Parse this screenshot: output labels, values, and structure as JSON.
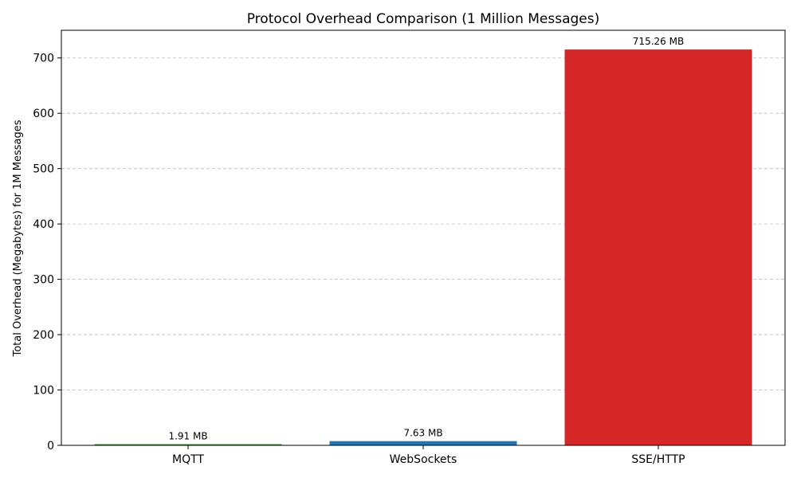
{
  "chart_data": {
    "type": "bar",
    "title": "Protocol Overhead Comparison (1 Million Messages)",
    "xlabel": "",
    "ylabel": "Total Overhead (Megabytes) for 1M Messages",
    "categories": [
      "MQTT",
      "WebSockets",
      "SSE/HTTP"
    ],
    "values": [
      1.91,
      7.63,
      715.26
    ],
    "data_labels": [
      "1.91 MB",
      "7.63 MB",
      "715.26 MB"
    ],
    "colors": [
      "#2ca02c",
      "#1f77b4",
      "#d62728"
    ],
    "ylim": [
      0,
      750
    ],
    "yticks": [
      0,
      100,
      200,
      300,
      400,
      500,
      600,
      700
    ],
    "ytick_labels": [
      "0",
      "100",
      "200",
      "300",
      "400",
      "500",
      "600",
      "700"
    ],
    "grid": "y-dashed",
    "legend": "none"
  }
}
